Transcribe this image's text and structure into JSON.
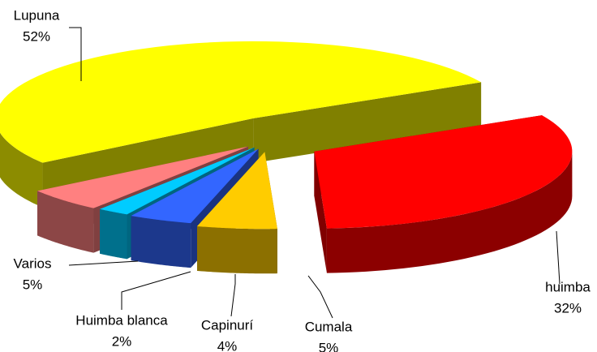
{
  "chart_data": {
    "type": "pie",
    "categories": [
      "huimba",
      "Cumala",
      "Capinurí",
      "Huimba blanca",
      "Varios",
      "Lupuna"
    ],
    "values": [
      32,
      5,
      4,
      2,
      5,
      52
    ],
    "value_labels": [
      "32%",
      "5%",
      "4%",
      "2%",
      "5%",
      "52%"
    ],
    "colors": [
      "#ff0000",
      "#ffcc00",
      "#3366ff",
      "#00ccff",
      "#ff8080",
      "#ffff00"
    ]
  }
}
